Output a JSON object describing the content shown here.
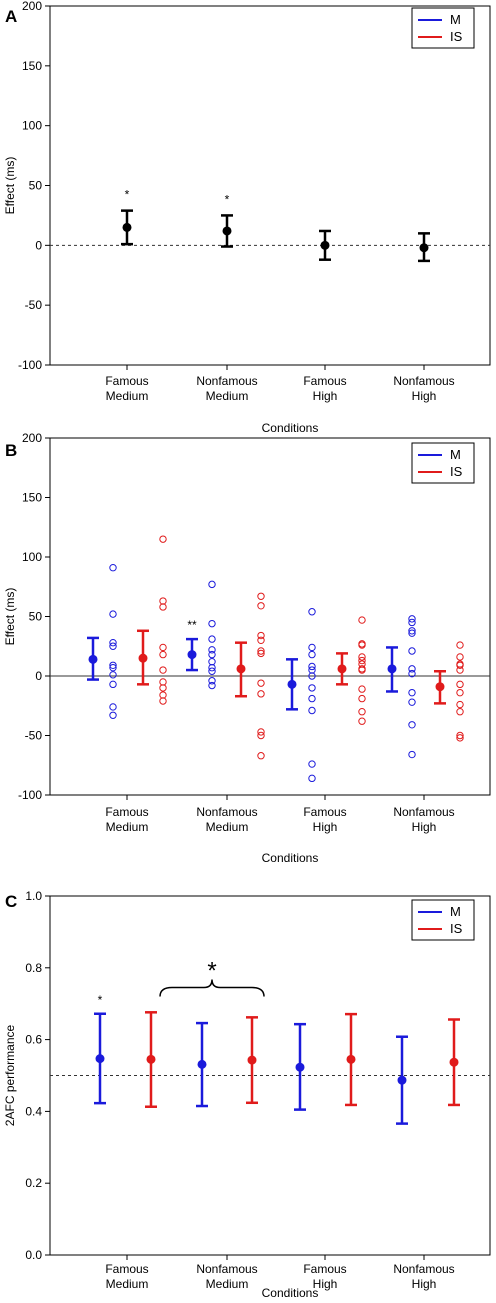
{
  "colors": {
    "M": "#1a1adb",
    "IS": "#e01b1b",
    "single": "#000000"
  },
  "chart_data": [
    {
      "panel": "A",
      "type": "scatter",
      "xlabel": "Conditions",
      "ylabel": "Effect (ms)",
      "ylim": [
        -100,
        200
      ],
      "yticks": [
        "-100",
        "-50",
        "0",
        "50",
        "100",
        "150",
        "200"
      ],
      "categories": [
        [
          "Famous",
          "Medium"
        ],
        [
          "Nonfamous",
          "Medium"
        ],
        [
          "Famous",
          "High"
        ],
        [
          "Nonfamous",
          "High"
        ]
      ],
      "reference_line": 0,
      "grid": false,
      "legend": {
        "position": "top-right",
        "entries": [
          "M",
          "IS"
        ]
      },
      "series": [
        {
          "means": [
            15,
            12,
            0,
            -2
          ],
          "lower": [
            1,
            -1,
            -12,
            -13
          ],
          "upper": [
            29,
            25,
            12,
            10
          ],
          "annotations": [
            "*",
            "*",
            "",
            ""
          ]
        }
      ]
    },
    {
      "panel": "B",
      "type": "scatter",
      "xlabel": "Conditions",
      "ylabel": "Effect (ms)",
      "ylim": [
        -100,
        200
      ],
      "yticks": [
        "-100",
        "-50",
        "0",
        "50",
        "100",
        "150",
        "200"
      ],
      "categories": [
        [
          "Famous",
          "Medium"
        ],
        [
          "Nonfamous",
          "Medium"
        ],
        [
          "Famous",
          "High"
        ],
        [
          "Nonfamous",
          "High"
        ]
      ],
      "reference_line": 0,
      "grid": false,
      "legend": {
        "position": "top-right",
        "entries": [
          "M",
          "IS"
        ]
      },
      "series": [
        {
          "name": "M",
          "means": [
            14,
            18,
            -7,
            6
          ],
          "lower": [
            -3,
            5,
            -28,
            -13
          ],
          "upper": [
            32,
            31,
            14,
            24
          ],
          "annotations": [
            "",
            "**",
            "",
            ""
          ],
          "individual": [
            [
              91,
              52,
              28,
              25,
              9,
              7,
              1,
              -7,
              -26,
              -33
            ],
            [
              77,
              44,
              31,
              22,
              18,
              12,
              7,
              4,
              -4,
              -8
            ],
            [
              54,
              24,
              18,
              8,
              5,
              0,
              -10,
              -19,
              -29,
              -74,
              -86
            ],
            [
              48,
              45,
              38,
              36,
              21,
              6,
              2,
              -14,
              -22,
              -41,
              -66
            ]
          ]
        },
        {
          "name": "IS",
          "means": [
            15,
            6,
            6,
            -9
          ],
          "lower": [
            -7,
            -17,
            -7,
            -23
          ],
          "upper": [
            38,
            28,
            19,
            4
          ],
          "individual": [
            [
              115,
              63,
              58,
              24,
              18,
              5,
              -5,
              -10,
              -16,
              -21
            ],
            [
              67,
              59,
              34,
              30,
              21,
              19,
              -6,
              -15,
              -47,
              -50,
              -67
            ],
            [
              47,
              27,
              26,
              16,
              13,
              10,
              6,
              5,
              -11,
              -19,
              -30,
              -38
            ],
            [
              26,
              16,
              10,
              9,
              5,
              -7,
              -14,
              -24,
              -30,
              -50,
              -52
            ]
          ]
        }
      ]
    },
    {
      "panel": "C",
      "type": "scatter",
      "xlabel": "Conditions",
      "ylabel": "2AFC performance",
      "ylim": [
        0.0,
        1.0
      ],
      "yticks": [
        "0.0",
        "0.2",
        "0.4",
        "0.6",
        "0.8",
        "1.0"
      ],
      "categories": [
        [
          "Famous",
          "Medium"
        ],
        [
          "Nonfamous",
          "Medium"
        ],
        [
          "Famous",
          "High"
        ],
        [
          "Nonfamous",
          "High"
        ]
      ],
      "reference_line": 0.5,
      "grid": false,
      "legend": {
        "position": "top-right",
        "entries": [
          "M",
          "IS"
        ]
      },
      "series": [
        {
          "name": "M",
          "means": [
            0.547,
            0.531,
            0.523,
            0.487
          ],
          "lower": [
            0.423,
            0.415,
            0.405,
            0.366
          ],
          "upper": [
            0.672,
            0.646,
            0.643,
            0.608
          ],
          "annotations": [
            "*",
            "",
            "",
            ""
          ]
        },
        {
          "name": "IS",
          "means": [
            0.545,
            0.543,
            0.545,
            0.537
          ],
          "lower": [
            0.413,
            0.424,
            0.418,
            0.418
          ],
          "upper": [
            0.676,
            0.662,
            0.671,
            0.656
          ]
        }
      ],
      "bracket": {
        "label": "*",
        "between": "Nonfamous Medium M–IS"
      }
    }
  ]
}
